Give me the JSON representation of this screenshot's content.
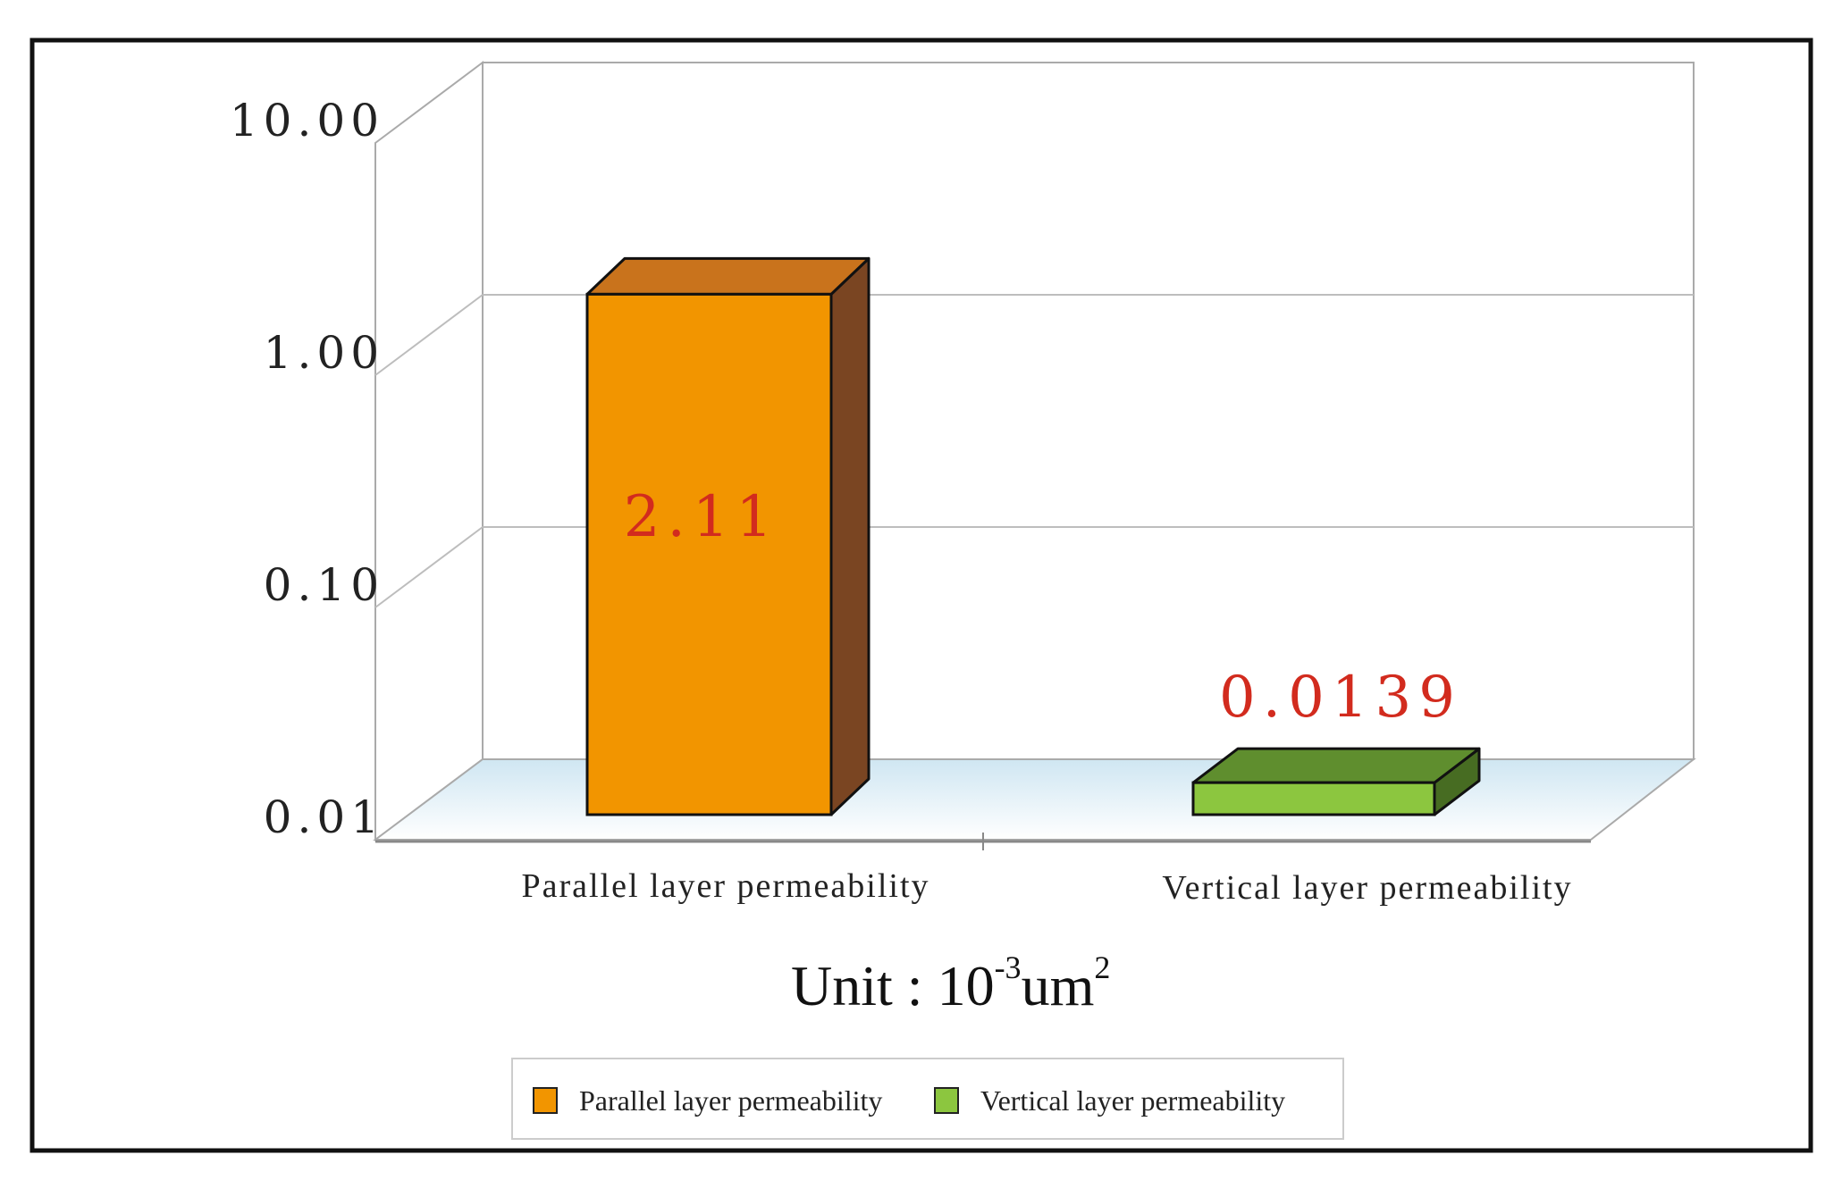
{
  "chart_data": {
    "type": "bar",
    "y_scale": "log",
    "ylim": [
      0.01,
      10
    ],
    "y_ticks": [
      "10.00",
      "1.00",
      "0.10",
      "0.01"
    ],
    "y_tick_values": [
      10,
      1,
      0.1,
      0.01
    ],
    "categories": [
      "Parallel layer permeability",
      "Vertical layer permeability"
    ],
    "values": [
      2.11,
      0.0139
    ],
    "value_labels": [
      "2.11",
      "0.0139"
    ],
    "unit_label": {
      "prefix": "Unit : ",
      "base": "10",
      "exp1": "-3",
      "middle": "um",
      "exp2": "2"
    },
    "legend": {
      "position": "bottom",
      "entries": [
        {
          "name": "Parallel layer permeability",
          "color": "#f29500"
        },
        {
          "name": "Vertical layer permeability",
          "color": "#8cc63f"
        }
      ]
    },
    "colors": {
      "bar1_front": "#f29500",
      "bar1_top": "#c9731c",
      "bar1_side": "#7a4522",
      "bar2_front": "#8cc63f",
      "bar2_top": "#5f8e2e",
      "bar2_side": "#476c22",
      "value_label": "#d22b1e",
      "floor": "#d6ebf5"
    },
    "grid": true
  }
}
